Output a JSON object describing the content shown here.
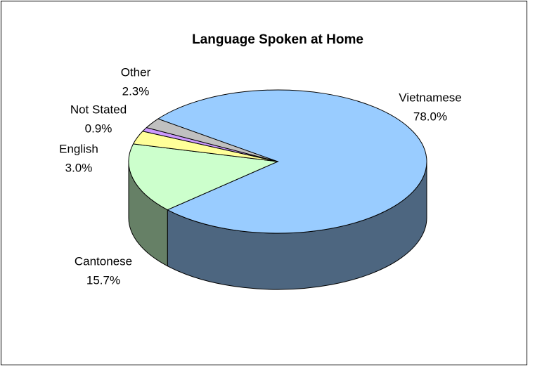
{
  "chart_data": {
    "type": "pie",
    "title": "Language Spoken at Home",
    "categories": [
      "Vietnamese",
      "Cantonese",
      "English",
      "Not Stated",
      "Other"
    ],
    "values": [
      78.0,
      15.7,
      3.0,
      0.9,
      2.3
    ],
    "value_labels": [
      "78.0%",
      "15.7%",
      "3.0%",
      "0.9%",
      "2.3%"
    ],
    "colors": [
      "#99ccff",
      "#ccffcc",
      "#ffff99",
      "#cc99ff",
      "#c0c0c0"
    ]
  }
}
